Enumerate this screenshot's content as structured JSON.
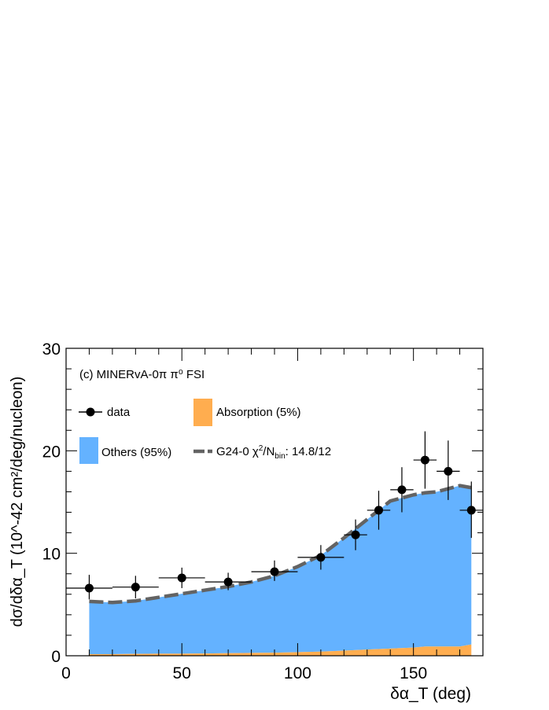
{
  "chart_data": {
    "type": "area",
    "title": "(c) MINERvA-0π  π⁰ FSI",
    "xlabel": "δα_T (deg)",
    "ylabel": "dσ/dδα_T (10^-42 cm²/deg/nucleon)",
    "xlim": [
      0,
      180
    ],
    "ylim": [
      0,
      30
    ],
    "x_ticks": [
      "0",
      "50",
      "100",
      "150"
    ],
    "y_ticks": [
      "0",
      "10",
      "20",
      "30"
    ],
    "grid": false,
    "legend_placement": "top-left",
    "colors": {
      "data": "#000000",
      "absorption": "#ffad4f",
      "others": "#64b2ff",
      "model_line": "#636363"
    },
    "series": [
      {
        "name": "data",
        "kind": "points",
        "points": [
          {
            "x": 10,
            "y": 6.6,
            "xlo": 0,
            "xhi": 20,
            "ylo": 5.5,
            "yhi": 7.9
          },
          {
            "x": 30,
            "y": 6.7,
            "xlo": 20,
            "xhi": 40,
            "ylo": 5.6,
            "yhi": 7.8
          },
          {
            "x": 50,
            "y": 7.6,
            "xlo": 40,
            "xhi": 60,
            "ylo": 6.6,
            "yhi": 8.6
          },
          {
            "x": 70,
            "y": 7.2,
            "xlo": 60,
            "xhi": 80,
            "ylo": 6.4,
            "yhi": 8.1
          },
          {
            "x": 90,
            "y": 8.2,
            "xlo": 80,
            "xhi": 100,
            "ylo": 7.3,
            "yhi": 9.3
          },
          {
            "x": 110,
            "y": 9.6,
            "xlo": 100,
            "xhi": 120,
            "ylo": 8.4,
            "yhi": 10.8
          },
          {
            "x": 125,
            "y": 11.8,
            "xlo": 120,
            "xhi": 130,
            "ylo": 10.3,
            "yhi": 13.3
          },
          {
            "x": 135,
            "y": 14.2,
            "xlo": 130,
            "xhi": 140,
            "ylo": 12.3,
            "yhi": 16.1
          },
          {
            "x": 145,
            "y": 16.2,
            "xlo": 140,
            "xhi": 150,
            "ylo": 14.0,
            "yhi": 18.4
          },
          {
            "x": 155,
            "y": 19.1,
            "xlo": 150,
            "xhi": 160,
            "ylo": 16.3,
            "yhi": 21.9
          },
          {
            "x": 165,
            "y": 18.0,
            "xlo": 160,
            "xhi": 170,
            "ylo": 15.2,
            "yhi": 21.0
          },
          {
            "x": 175,
            "y": 14.2,
            "xlo": 170,
            "xhi": 180,
            "ylo": 11.5,
            "yhi": 17.0
          }
        ]
      },
      {
        "name": "Absorption (5%)",
        "kind": "stacked-area",
        "x": [
          10,
          20,
          30,
          40,
          50,
          60,
          70,
          80,
          90,
          100,
          110,
          120,
          130,
          140,
          150,
          155,
          160,
          170,
          175
        ],
        "values": [
          0.15,
          0.15,
          0.18,
          0.2,
          0.2,
          0.22,
          0.25,
          0.28,
          0.3,
          0.35,
          0.4,
          0.5,
          0.6,
          0.7,
          0.8,
          0.9,
          0.9,
          0.9,
          1.1
        ]
      },
      {
        "name": "Others (95%)",
        "kind": "stacked-area",
        "x": [
          10,
          20,
          30,
          40,
          50,
          60,
          70,
          80,
          90,
          100,
          110,
          120,
          130,
          140,
          150,
          155,
          160,
          170,
          175
        ],
        "values": [
          5.15,
          5.05,
          5.17,
          5.5,
          5.85,
          6.18,
          6.5,
          6.92,
          7.5,
          8.35,
          9.4,
          11.0,
          12.7,
          14.4,
          14.9,
          15.0,
          15.1,
          15.7,
          15.3
        ]
      },
      {
        "name": "G24-0",
        "kind": "dashed-line",
        "x": [
          10,
          20,
          30,
          40,
          50,
          60,
          70,
          80,
          90,
          100,
          110,
          120,
          130,
          140,
          150,
          155,
          160,
          170,
          175
        ],
        "values": [
          5.3,
          5.2,
          5.35,
          5.7,
          6.05,
          6.4,
          6.75,
          7.2,
          7.8,
          8.7,
          9.8,
          11.5,
          13.3,
          15.1,
          15.7,
          15.9,
          16.0,
          16.6,
          16.4
        ]
      }
    ],
    "legend": {
      "data": "data",
      "absorption": "Absorption (5%)",
      "others": "Others (95%)",
      "model_prefix": "G24-0 χ",
      "model_sup": "2",
      "model_mid": "/N",
      "model_sub": "bin",
      "model_suffix": ": 14.8/12"
    }
  }
}
